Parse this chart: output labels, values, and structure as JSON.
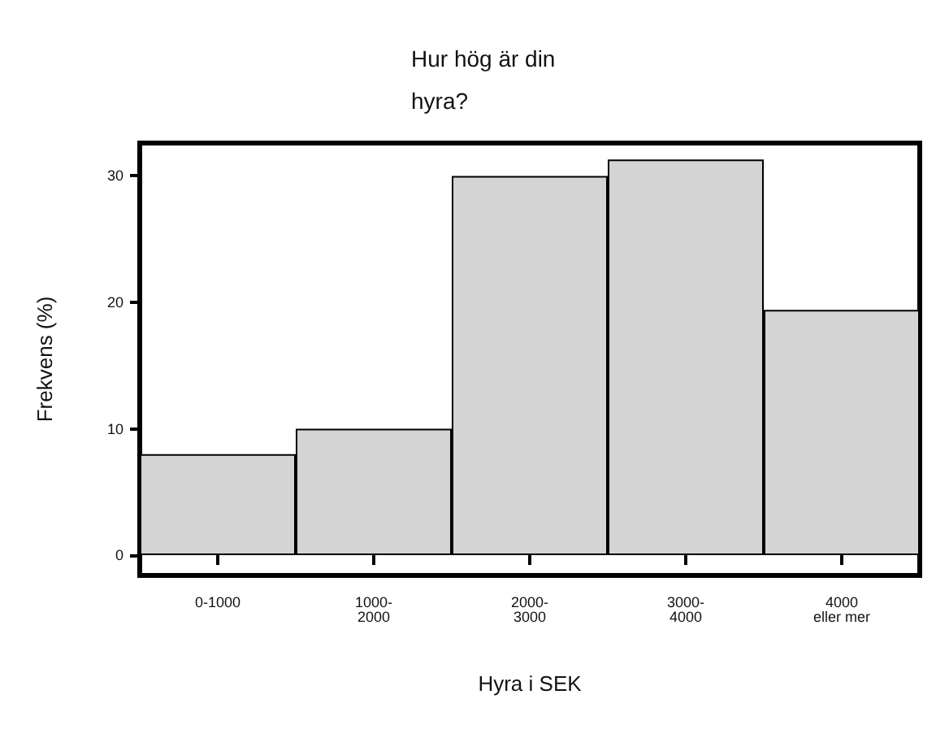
{
  "chart_data": {
    "type": "bar",
    "title": "Hur hög är din\nhyra?",
    "xlabel": "Hyra i SEK",
    "ylabel": "Frekvens (%)",
    "categories": [
      "0-1000",
      "1000-\n2000",
      "2000-\n3000",
      "3000-\n4000",
      "4000\neller mer"
    ],
    "values": [
      8,
      10,
      30,
      31.3,
      19.4
    ],
    "color": "#d4d4d4",
    "ylim": [
      -1.6,
      32.6
    ],
    "yticks": [
      0,
      10,
      20,
      30
    ],
    "grid": false
  }
}
